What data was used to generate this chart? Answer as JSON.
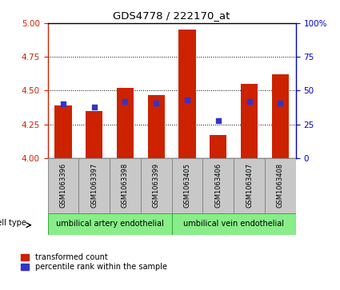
{
  "title": "GDS4778 / 222170_at",
  "samples": [
    "GSM1063396",
    "GSM1063397",
    "GSM1063398",
    "GSM1063399",
    "GSM1063405",
    "GSM1063406",
    "GSM1063407",
    "GSM1063408"
  ],
  "red_values": [
    4.39,
    4.35,
    4.52,
    4.47,
    4.95,
    4.17,
    4.55,
    4.62
  ],
  "blue_values_pct": [
    40,
    38,
    42,
    41,
    43,
    28,
    42,
    41
  ],
  "ylim": [
    4.0,
    5.0
  ],
  "yticks": [
    4.0,
    4.25,
    4.5,
    4.75,
    5.0
  ],
  "right_ylim": [
    0,
    100
  ],
  "right_yticks": [
    0,
    25,
    50,
    75,
    100
  ],
  "right_yticklabels": [
    "0",
    "25",
    "50",
    "75",
    "100%"
  ],
  "bar_color": "#cc2200",
  "blue_color": "#3333cc",
  "cell_type_groups": [
    {
      "label": "umbilical artery endothelial",
      "start": 0,
      "end": 3
    },
    {
      "label": "umbilical vein endothelial",
      "start": 4,
      "end": 7
    }
  ],
  "cell_type_label": "cell type",
  "legend_red": "transformed count",
  "legend_blue": "percentile rank within the sample",
  "bar_width": 0.55,
  "axis_label_color_red": "#cc2200",
  "axis_label_color_blue": "#0000cc",
  "label_box_color": "#c8c8c8",
  "label_box_edge": "#888888",
  "cell_type_green_face": "#88ee88",
  "cell_type_green_edge": "#44aa44"
}
